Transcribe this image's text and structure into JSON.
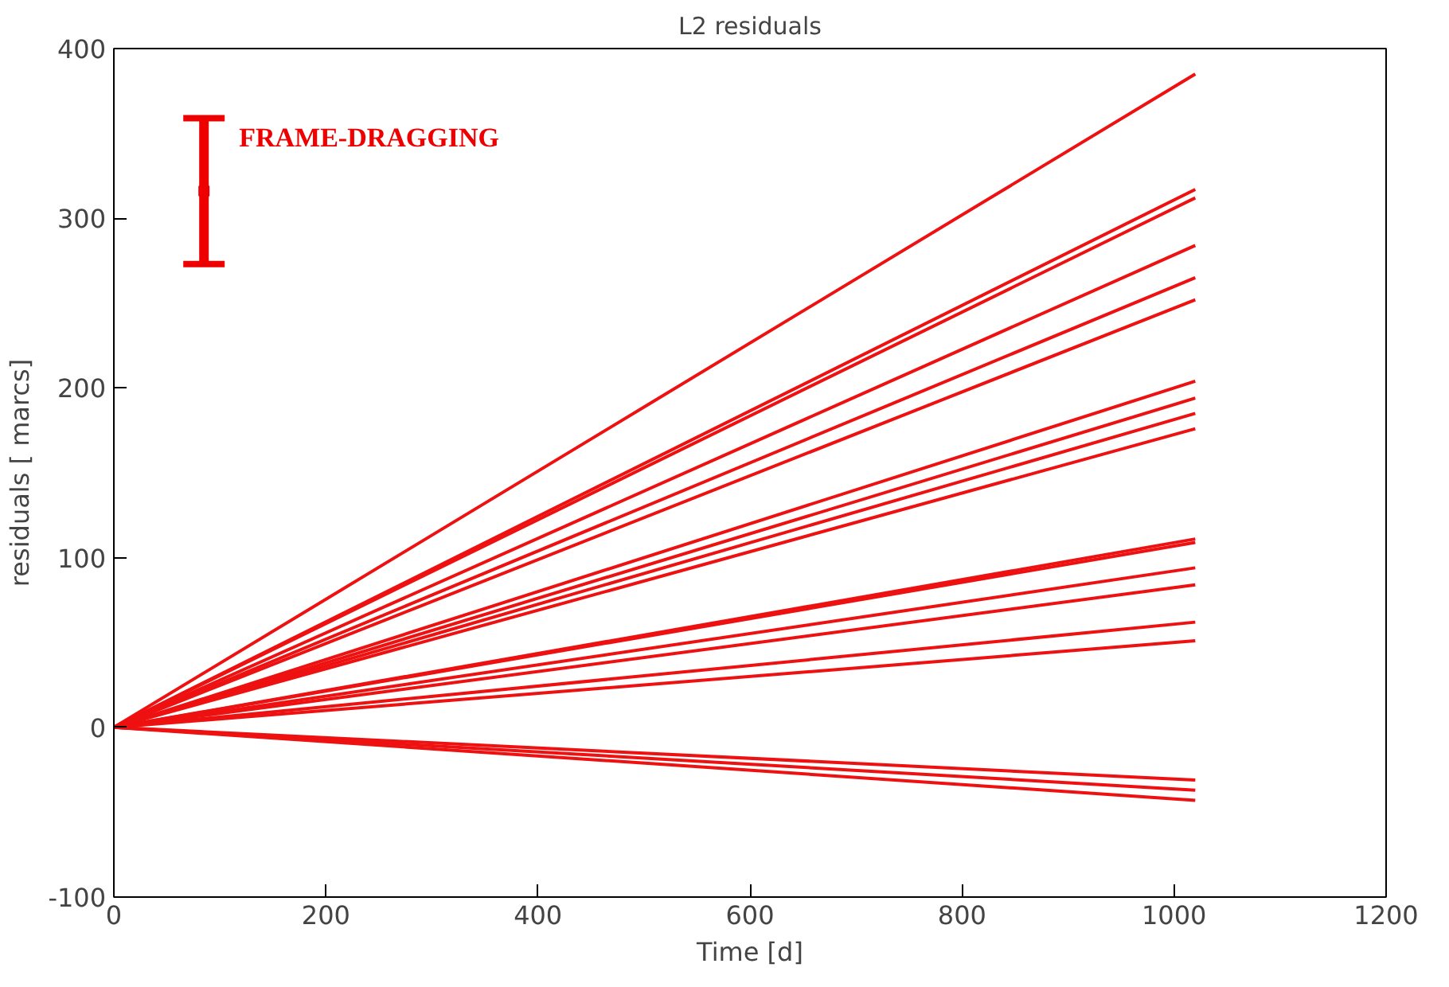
{
  "chart_data": {
    "type": "line",
    "title": "L2 residuals",
    "xlabel": "Time [d]",
    "ylabel": "residuals [ marcs]",
    "xlim": [
      0,
      1200
    ],
    "ylim": [
      -100,
      400
    ],
    "xticks": [
      0,
      200,
      400,
      600,
      800,
      1000,
      1200
    ],
    "yticks": [
      -100,
      0,
      100,
      200,
      300,
      400
    ],
    "grid": false,
    "marker": "none",
    "line_style": "solid",
    "series": [
      {
        "color": "#ee1111",
        "x": [
          0,
          1020
        ],
        "values": [
          0,
          385
        ]
      },
      {
        "color": "#ee1111",
        "x": [
          0,
          1020
        ],
        "values": [
          0,
          317
        ]
      },
      {
        "color": "#ee1111",
        "x": [
          0,
          1020
        ],
        "values": [
          0,
          312
        ]
      },
      {
        "color": "#ee1111",
        "x": [
          0,
          1020
        ],
        "values": [
          0,
          284
        ]
      },
      {
        "color": "#ee1111",
        "x": [
          0,
          1020
        ],
        "values": [
          0,
          265
        ]
      },
      {
        "color": "#ee1111",
        "x": [
          0,
          1020
        ],
        "values": [
          0,
          252
        ]
      },
      {
        "color": "#ee1111",
        "x": [
          0,
          1020
        ],
        "values": [
          0,
          204
        ]
      },
      {
        "color": "#ee1111",
        "x": [
          0,
          1020
        ],
        "values": [
          0,
          194
        ]
      },
      {
        "color": "#ee1111",
        "x": [
          0,
          1020
        ],
        "values": [
          0,
          185
        ]
      },
      {
        "color": "#ee1111",
        "x": [
          0,
          1020
        ],
        "values": [
          0,
          176
        ]
      },
      {
        "color": "#ee1111",
        "x": [
          0,
          1020
        ],
        "values": [
          0,
          111
        ]
      },
      {
        "color": "#ee1111",
        "x": [
          0,
          1020
        ],
        "values": [
          0,
          109
        ]
      },
      {
        "color": "#ee1111",
        "x": [
          0,
          1020
        ],
        "values": [
          0,
          94
        ]
      },
      {
        "color": "#ee1111",
        "x": [
          0,
          1020
        ],
        "values": [
          0,
          84
        ]
      },
      {
        "color": "#ee1111",
        "x": [
          0,
          1020
        ],
        "values": [
          0,
          62
        ]
      },
      {
        "color": "#ee1111",
        "x": [
          0,
          1020
        ],
        "values": [
          0,
          51
        ]
      },
      {
        "color": "#ee1111",
        "x": [
          0,
          1020
        ],
        "values": [
          0,
          -31
        ]
      },
      {
        "color": "#ee1111",
        "x": [
          0,
          1020
        ],
        "values": [
          0,
          -37
        ]
      },
      {
        "color": "#ee1111",
        "x": [
          0,
          1020
        ],
        "values": [
          0,
          -43
        ]
      },
      {
        "name": "FRAME-DRAGGING",
        "type": "scatter",
        "marker": "square",
        "color": "#ee0000",
        "x": [
          85
        ],
        "values": [
          316
        ],
        "errors": [
          43
        ]
      }
    ]
  }
}
